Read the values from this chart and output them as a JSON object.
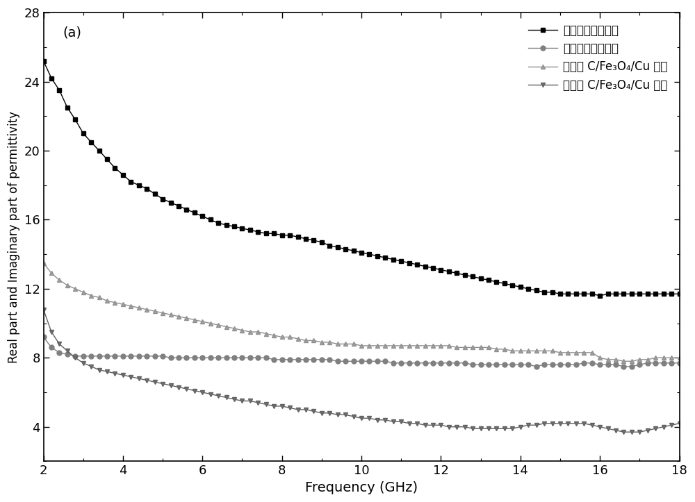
{
  "title_label": "(a)",
  "xlabel": "Frequency (GHz)",
  "ylabel": "Real part and Imaginary part of permittivity",
  "xlim": [
    2,
    18
  ],
  "ylim": [
    2,
    28
  ],
  "yticks": [
    4,
    8,
    12,
    16,
    20,
    24,
    28
  ],
  "xticks": [
    2,
    4,
    6,
    8,
    10,
    12,
    14,
    16,
    18
  ],
  "legend_labels": [
    "生物质碳材料实部",
    "生物质碳材料虚部",
    "生物质 C/Fe₃O₄/Cu 实部",
    "生物质 C/Fe₃O₄/Cu 虚部"
  ],
  "series1_color": "#000000",
  "series2_color": "#808080",
  "series3_color": "#909090",
  "series4_color": "#606060",
  "background_color": "#ffffff",
  "series1_x": [
    2.0,
    2.2,
    2.4,
    2.6,
    2.8,
    3.0,
    3.2,
    3.4,
    3.6,
    3.8,
    4.0,
    4.2,
    4.4,
    4.6,
    4.8,
    5.0,
    5.2,
    5.4,
    5.6,
    5.8,
    6.0,
    6.2,
    6.4,
    6.6,
    6.8,
    7.0,
    7.2,
    7.4,
    7.6,
    7.8,
    8.0,
    8.2,
    8.4,
    8.6,
    8.8,
    9.0,
    9.2,
    9.4,
    9.6,
    9.8,
    10.0,
    10.2,
    10.4,
    10.6,
    10.8,
    11.0,
    11.2,
    11.4,
    11.6,
    11.8,
    12.0,
    12.2,
    12.4,
    12.6,
    12.8,
    13.0,
    13.2,
    13.4,
    13.6,
    13.8,
    14.0,
    14.2,
    14.4,
    14.6,
    14.8,
    15.0,
    15.2,
    15.4,
    15.6,
    15.8,
    16.0,
    16.2,
    16.4,
    16.6,
    16.8,
    17.0,
    17.2,
    17.4,
    17.6,
    17.8,
    18.0
  ],
  "series1_y": [
    25.2,
    24.2,
    23.5,
    22.5,
    21.8,
    21.0,
    20.5,
    20.0,
    19.5,
    19.0,
    18.6,
    18.2,
    18.0,
    17.8,
    17.5,
    17.2,
    17.0,
    16.8,
    16.6,
    16.4,
    16.2,
    16.0,
    15.8,
    15.7,
    15.6,
    15.5,
    15.4,
    15.3,
    15.2,
    15.2,
    15.1,
    15.1,
    15.0,
    14.9,
    14.8,
    14.7,
    14.5,
    14.4,
    14.3,
    14.2,
    14.1,
    14.0,
    13.9,
    13.8,
    13.7,
    13.6,
    13.5,
    13.4,
    13.3,
    13.2,
    13.1,
    13.0,
    12.9,
    12.8,
    12.7,
    12.6,
    12.5,
    12.4,
    12.3,
    12.2,
    12.1,
    12.0,
    11.9,
    11.8,
    11.8,
    11.7,
    11.7,
    11.7,
    11.7,
    11.7,
    11.6,
    11.7,
    11.7,
    11.7,
    11.7,
    11.7,
    11.7,
    11.7,
    11.7,
    11.7,
    11.7
  ],
  "series2_x": [
    2.0,
    2.2,
    2.4,
    2.6,
    2.8,
    3.0,
    3.2,
    3.4,
    3.6,
    3.8,
    4.0,
    4.2,
    4.4,
    4.6,
    4.8,
    5.0,
    5.2,
    5.4,
    5.6,
    5.8,
    6.0,
    6.2,
    6.4,
    6.6,
    6.8,
    7.0,
    7.2,
    7.4,
    7.6,
    7.8,
    8.0,
    8.2,
    8.4,
    8.6,
    8.8,
    9.0,
    9.2,
    9.4,
    9.6,
    9.8,
    10.0,
    10.2,
    10.4,
    10.6,
    10.8,
    11.0,
    11.2,
    11.4,
    11.6,
    11.8,
    12.0,
    12.2,
    12.4,
    12.6,
    12.8,
    13.0,
    13.2,
    13.4,
    13.6,
    13.8,
    14.0,
    14.2,
    14.4,
    14.6,
    14.8,
    15.0,
    15.2,
    15.4,
    15.6,
    15.8,
    16.0,
    16.2,
    16.4,
    16.6,
    16.8,
    17.0,
    17.2,
    17.4,
    17.6,
    17.8,
    18.0
  ],
  "series2_y": [
    9.2,
    8.6,
    8.3,
    8.2,
    8.1,
    8.1,
    8.1,
    8.1,
    8.1,
    8.1,
    8.1,
    8.1,
    8.1,
    8.1,
    8.1,
    8.1,
    8.0,
    8.0,
    8.0,
    8.0,
    8.0,
    8.0,
    8.0,
    8.0,
    8.0,
    8.0,
    8.0,
    8.0,
    8.0,
    7.9,
    7.9,
    7.9,
    7.9,
    7.9,
    7.9,
    7.9,
    7.9,
    7.8,
    7.8,
    7.8,
    7.8,
    7.8,
    7.8,
    7.8,
    7.7,
    7.7,
    7.7,
    7.7,
    7.7,
    7.7,
    7.7,
    7.7,
    7.7,
    7.7,
    7.6,
    7.6,
    7.6,
    7.6,
    7.6,
    7.6,
    7.6,
    7.6,
    7.5,
    7.6,
    7.6,
    7.6,
    7.6,
    7.6,
    7.7,
    7.7,
    7.6,
    7.6,
    7.6,
    7.5,
    7.5,
    7.6,
    7.7,
    7.7,
    7.7,
    7.7,
    7.7
  ],
  "series3_x": [
    2.0,
    2.2,
    2.4,
    2.6,
    2.8,
    3.0,
    3.2,
    3.4,
    3.6,
    3.8,
    4.0,
    4.2,
    4.4,
    4.6,
    4.8,
    5.0,
    5.2,
    5.4,
    5.6,
    5.8,
    6.0,
    6.2,
    6.4,
    6.6,
    6.8,
    7.0,
    7.2,
    7.4,
    7.6,
    7.8,
    8.0,
    8.2,
    8.4,
    8.6,
    8.8,
    9.0,
    9.2,
    9.4,
    9.6,
    9.8,
    10.0,
    10.2,
    10.4,
    10.6,
    10.8,
    11.0,
    11.2,
    11.4,
    11.6,
    11.8,
    12.0,
    12.2,
    12.4,
    12.6,
    12.8,
    13.0,
    13.2,
    13.4,
    13.6,
    13.8,
    14.0,
    14.2,
    14.4,
    14.6,
    14.8,
    15.0,
    15.2,
    15.4,
    15.6,
    15.8,
    16.0,
    16.2,
    16.4,
    16.6,
    16.8,
    17.0,
    17.2,
    17.4,
    17.6,
    17.8,
    18.0
  ],
  "series3_y": [
    13.5,
    12.9,
    12.5,
    12.2,
    12.0,
    11.8,
    11.6,
    11.5,
    11.3,
    11.2,
    11.1,
    11.0,
    10.9,
    10.8,
    10.7,
    10.6,
    10.5,
    10.4,
    10.3,
    10.2,
    10.1,
    10.0,
    9.9,
    9.8,
    9.7,
    9.6,
    9.5,
    9.5,
    9.4,
    9.3,
    9.2,
    9.2,
    9.1,
    9.0,
    9.0,
    8.9,
    8.9,
    8.8,
    8.8,
    8.8,
    8.7,
    8.7,
    8.7,
    8.7,
    8.7,
    8.7,
    8.7,
    8.7,
    8.7,
    8.7,
    8.7,
    8.7,
    8.6,
    8.6,
    8.6,
    8.6,
    8.6,
    8.5,
    8.5,
    8.4,
    8.4,
    8.4,
    8.4,
    8.4,
    8.4,
    8.3,
    8.3,
    8.3,
    8.3,
    8.3,
    8.0,
    7.9,
    7.9,
    7.8,
    7.8,
    7.9,
    7.9,
    8.0,
    8.0,
    8.0,
    8.0
  ],
  "series4_x": [
    2.0,
    2.2,
    2.4,
    2.6,
    2.8,
    3.0,
    3.2,
    3.4,
    3.6,
    3.8,
    4.0,
    4.2,
    4.4,
    4.6,
    4.8,
    5.0,
    5.2,
    5.4,
    5.6,
    5.8,
    6.0,
    6.2,
    6.4,
    6.6,
    6.8,
    7.0,
    7.2,
    7.4,
    7.6,
    7.8,
    8.0,
    8.2,
    8.4,
    8.6,
    8.8,
    9.0,
    9.2,
    9.4,
    9.6,
    9.8,
    10.0,
    10.2,
    10.4,
    10.6,
    10.8,
    11.0,
    11.2,
    11.4,
    11.6,
    11.8,
    12.0,
    12.2,
    12.4,
    12.6,
    12.8,
    13.0,
    13.2,
    13.4,
    13.6,
    13.8,
    14.0,
    14.2,
    14.4,
    14.6,
    14.8,
    15.0,
    15.2,
    15.4,
    15.6,
    15.8,
    16.0,
    16.2,
    16.4,
    16.6,
    16.8,
    17.0,
    17.2,
    17.4,
    17.6,
    17.8,
    18.0
  ],
  "series4_y": [
    10.8,
    9.5,
    8.8,
    8.4,
    8.0,
    7.7,
    7.5,
    7.3,
    7.2,
    7.1,
    7.0,
    6.9,
    6.8,
    6.7,
    6.6,
    6.5,
    6.4,
    6.3,
    6.2,
    6.1,
    6.0,
    5.9,
    5.8,
    5.7,
    5.6,
    5.5,
    5.5,
    5.4,
    5.3,
    5.2,
    5.2,
    5.1,
    5.0,
    5.0,
    4.9,
    4.8,
    4.8,
    4.7,
    4.7,
    4.6,
    4.5,
    4.5,
    4.4,
    4.4,
    4.3,
    4.3,
    4.2,
    4.2,
    4.1,
    4.1,
    4.1,
    4.0,
    4.0,
    4.0,
    3.9,
    3.9,
    3.9,
    3.9,
    3.9,
    3.9,
    4.0,
    4.1,
    4.1,
    4.2,
    4.2,
    4.2,
    4.2,
    4.2,
    4.2,
    4.1,
    4.0,
    3.9,
    3.8,
    3.7,
    3.7,
    3.7,
    3.8,
    3.9,
    4.0,
    4.1,
    4.2
  ]
}
